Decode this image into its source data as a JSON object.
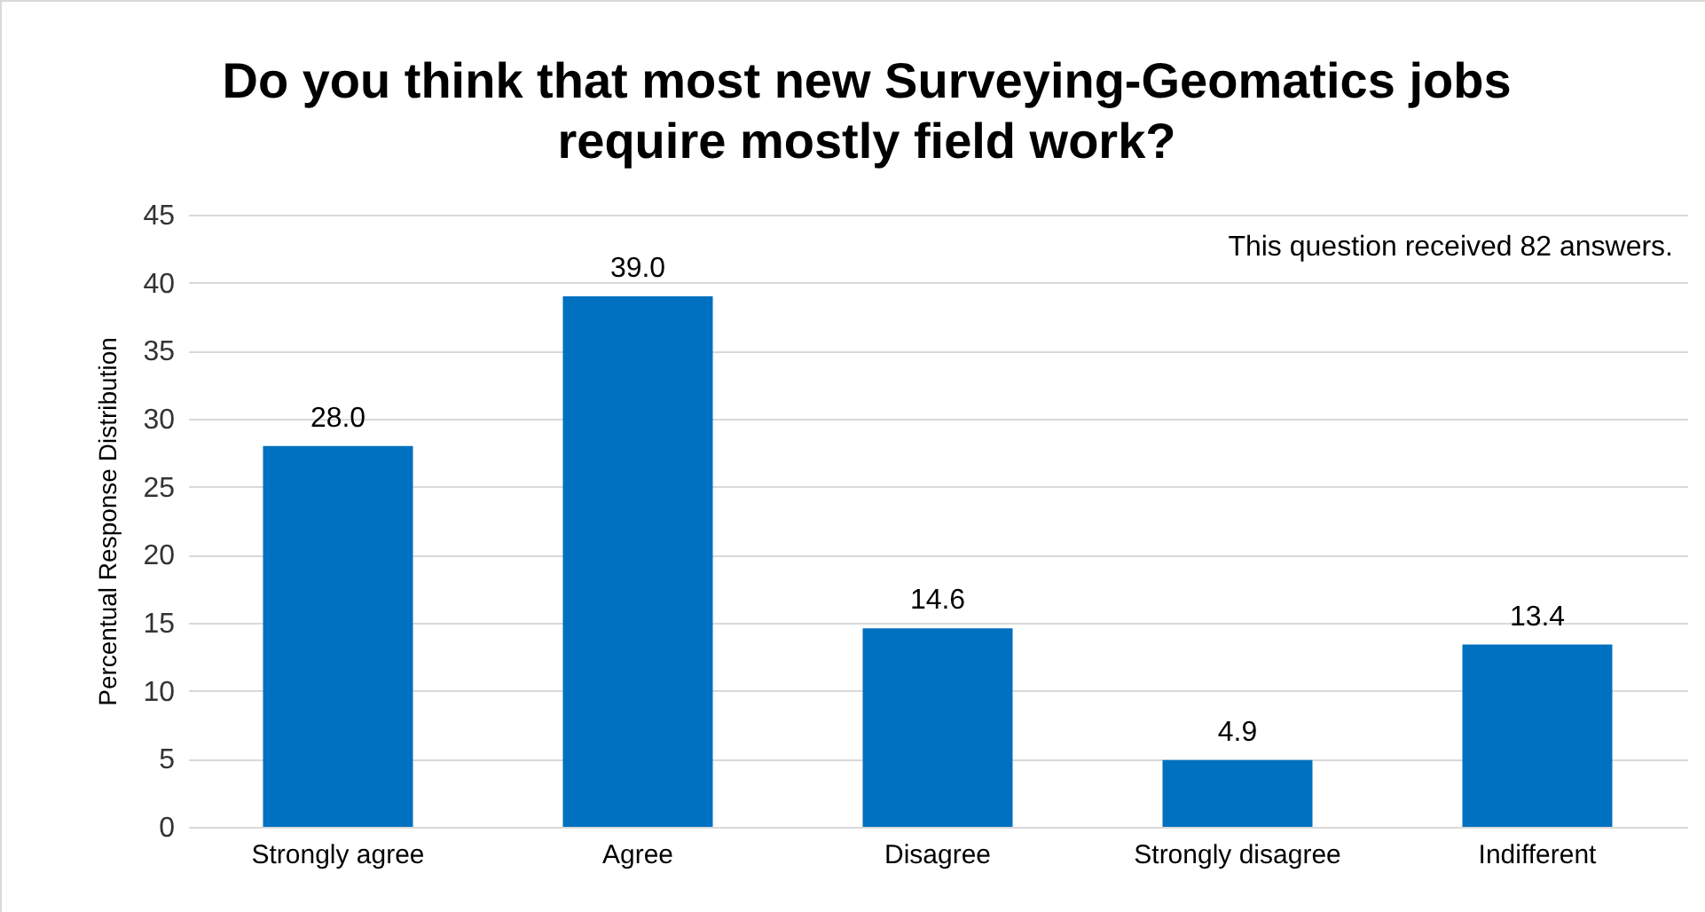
{
  "chart_data": {
    "type": "bar",
    "title": "Do you think that most new Surveying-Geomatics jobs\nrequire mostly field work?",
    "ylabel": "Percentual Response Distribution",
    "annotations": [
      "This question received 82 answers."
    ],
    "categories": [
      "Strongly agree",
      "Agree",
      "Disagree",
      "Strongly disagree",
      "Indifferent"
    ],
    "values": [
      28.0,
      39.0,
      14.6,
      4.9,
      13.4
    ],
    "value_labels": [
      "28.0",
      "39.0",
      "14.6",
      "4.9",
      "13.4"
    ],
    "color": "#0070c0",
    "ylim": [
      0,
      45
    ],
    "yticks": [
      0,
      5,
      10,
      15,
      20,
      25,
      30,
      35,
      40,
      45
    ],
    "grid": "y"
  }
}
